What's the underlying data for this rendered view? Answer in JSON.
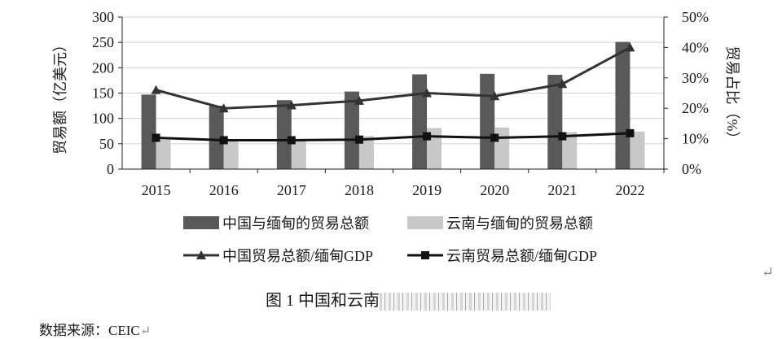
{
  "chart_data": {
    "type": "bar",
    "categories": [
      "2015",
      "2016",
      "2017",
      "2018",
      "2019",
      "2020",
      "2021",
      "2022"
    ],
    "series": [
      {
        "name": "中国与缅甸的贸易总额",
        "kind": "bar",
        "axis": "left",
        "color": "#595959",
        "values": [
          147,
          125,
          136,
          153,
          187,
          188,
          186,
          251
        ]
      },
      {
        "name": "云南与缅甸的贸易总额",
        "kind": "bar",
        "axis": "left",
        "color": "#c8c8c8",
        "values": [
          58,
          57,
          56,
          65,
          81,
          82,
          73,
          74
        ]
      },
      {
        "name": "中国贸易总额/缅甸GDP",
        "kind": "line",
        "marker": "triangle",
        "axis": "right",
        "color": "#333333",
        "values": [
          26,
          20,
          21,
          22.5,
          25,
          24,
          28,
          40
        ]
      },
      {
        "name": "云南贸易总额/缅甸GDP",
        "kind": "line",
        "marker": "square",
        "axis": "right",
        "color": "#111111",
        "values": [
          10.3,
          9.5,
          9.5,
          9.7,
          10.8,
          10.3,
          10.8,
          11.8
        ]
      }
    ],
    "ylabel": "贸易额（亿美元）",
    "ylim": [
      0,
      300
    ],
    "yticks": [
      "0",
      "50",
      "100",
      "150",
      "200",
      "250",
      "300"
    ],
    "y2label": "贸易占比（%）",
    "y2lim": [
      0,
      50
    ],
    "y2ticks": [
      "0%",
      "10%",
      "20%",
      "30%",
      "40%",
      "50%"
    ],
    "grid": true,
    "legend": "bottom"
  },
  "caption": {
    "label": "图 1",
    "text": "中国和云南"
  },
  "source": "数据来源：CEIC",
  "marks": {
    "paragraph": "↵"
  }
}
